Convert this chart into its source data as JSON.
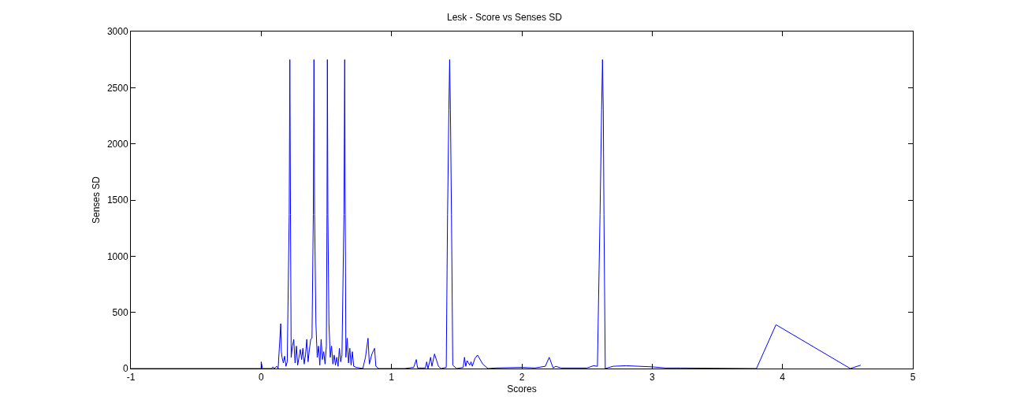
{
  "chart_data": {
    "type": "line",
    "title": "Lesk - Score vs Senses SD",
    "xlabel": "Scores",
    "ylabel": "Senses SD",
    "xlim": [
      -1,
      5
    ],
    "xticks": [
      -1,
      0,
      1,
      2,
      3,
      4,
      5
    ],
    "ylim": [
      0,
      3000
    ],
    "yticks": [
      0,
      500,
      1000,
      1500,
      2000,
      2500,
      3000
    ],
    "marker": "none",
    "line_style": "solid",
    "series": [
      {
        "color": "#0000ff",
        "x": [
          -1,
          -0.48,
          0,
          0,
          0.01,
          0.08,
          0.09,
          0.1,
          0.12,
          0.13,
          0.15,
          0.155,
          0.16,
          0.17,
          0.18,
          0.19,
          0.2,
          0.215,
          0.22,
          0.225,
          0.23,
          0.24,
          0.25,
          0.26,
          0.27,
          0.28,
          0.3,
          0.31,
          0.32,
          0.33,
          0.34,
          0.35,
          0.36,
          0.37,
          0.38,
          0.39,
          0.4,
          0.405,
          0.41,
          0.42,
          0.43,
          0.44,
          0.45,
          0.46,
          0.47,
          0.48,
          0.49,
          0.5,
          0.505,
          0.508,
          0.512,
          0.52,
          0.53,
          0.54,
          0.55,
          0.56,
          0.57,
          0.58,
          0.59,
          0.6,
          0.61,
          0.62,
          0.635,
          0.641,
          0.645,
          0.65,
          0.66,
          0.67,
          0.68,
          0.69,
          0.7,
          0.71,
          0.73,
          0.78,
          0.8,
          0.82,
          0.83,
          0.85,
          0.87,
          0.88,
          0.9,
          1.0,
          1.1,
          1.17,
          1.19,
          1.2,
          1.26,
          1.27,
          1.28,
          1.3,
          1.31,
          1.33,
          1.36,
          1.38,
          1.42,
          1.43,
          1.44,
          1.446,
          1.452,
          1.46,
          1.47,
          1.5,
          1.55,
          1.56,
          1.57,
          1.58,
          1.6,
          1.61,
          1.62,
          1.64,
          1.66,
          1.7,
          1.74,
          1.8,
          2.0,
          2.1,
          2.18,
          2.21,
          2.24,
          2.26,
          2.3,
          2.5,
          2.55,
          2.58,
          2.6,
          2.612,
          2.619,
          2.625,
          2.63,
          2.64,
          2.7,
          2.8,
          3.0,
          3.1,
          3.22,
          3.8,
          3.95,
          4.52,
          4.6
        ],
        "values": [
          0,
          0,
          0,
          60,
          0,
          0,
          15,
          0,
          20,
          0,
          400,
          150,
          100,
          50,
          110,
          20,
          60,
          1370,
          2750,
          1370,
          100,
          200,
          260,
          50,
          200,
          30,
          170,
          80,
          180,
          40,
          120,
          260,
          60,
          170,
          260,
          270,
          1370,
          2750,
          1370,
          400,
          100,
          200,
          30,
          260,
          80,
          150,
          40,
          200,
          1370,
          2750,
          1370,
          400,
          100,
          200,
          40,
          120,
          30,
          100,
          20,
          180,
          60,
          120,
          1370,
          2750,
          1370,
          100,
          270,
          50,
          180,
          30,
          150,
          20,
          10,
          0,
          100,
          270,
          40,
          130,
          180,
          20,
          0,
          0,
          0,
          10,
          80,
          5,
          5,
          60,
          0,
          100,
          20,
          130,
          20,
          0,
          10,
          1370,
          2300,
          2750,
          2300,
          1370,
          30,
          0,
          10,
          100,
          20,
          70,
          30,
          60,
          20,
          90,
          120,
          40,
          0,
          5,
          10,
          5,
          20,
          100,
          5,
          20,
          5,
          5,
          25,
          20,
          1370,
          2300,
          2750,
          2300,
          1370,
          0,
          20,
          25,
          15,
          5,
          5,
          0,
          390,
          0,
          30
        ]
      }
    ]
  }
}
